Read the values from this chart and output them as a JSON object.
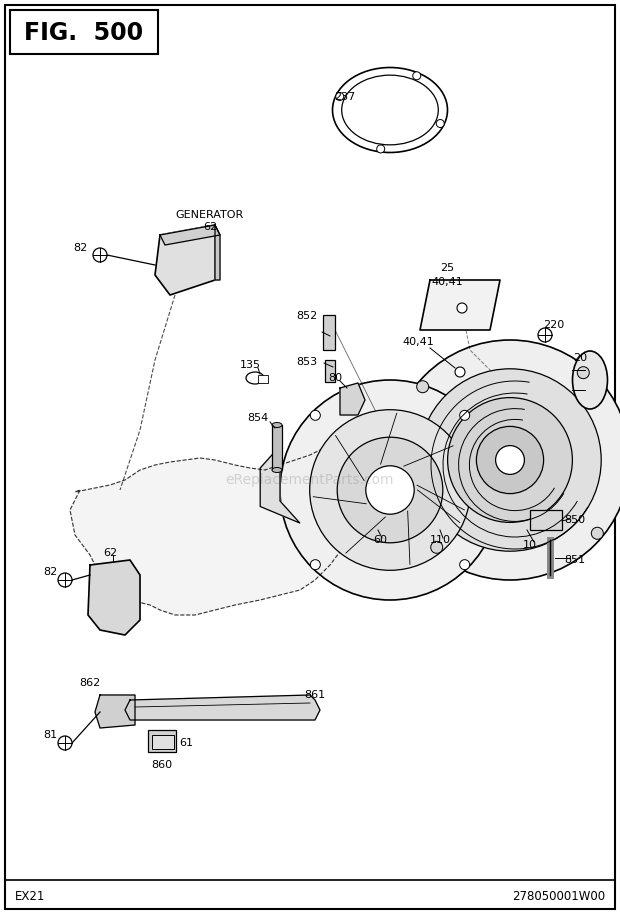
{
  "title": "FIG. 500",
  "bottom_left": "EX21",
  "bottom_right": "278050001W00",
  "watermark": "eReplacementParts.com",
  "bg_color": "#ffffff",
  "fig_width": 6.2,
  "fig_height": 9.14,
  "dpi": 100
}
